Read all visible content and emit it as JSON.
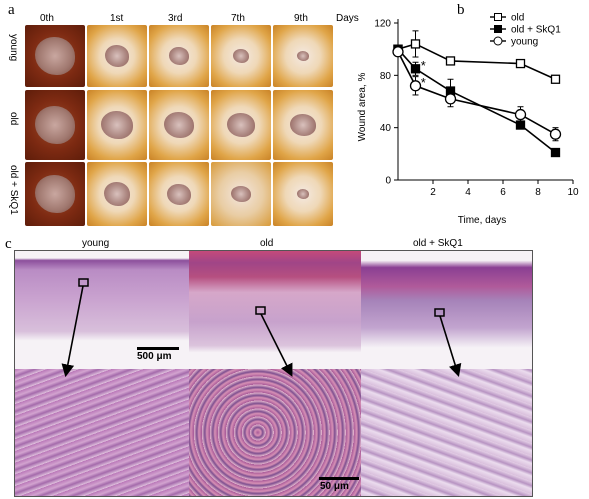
{
  "panel_a": {
    "label": "a",
    "columns": [
      "0th",
      "1st",
      "3rd",
      "7th",
      "9th"
    ],
    "days_label": "Days",
    "rows": [
      "young",
      "old",
      "old + SkQ1"
    ]
  },
  "panel_b": {
    "label": "b",
    "chart_data": {
      "type": "line",
      "xlabel": "Time, days",
      "ylabel": "Wound area, %",
      "xlim": [
        0,
        10
      ],
      "ylim": [
        0,
        120
      ],
      "xticks": [
        2,
        4,
        6,
        8,
        10
      ],
      "yticks": [
        0,
        40,
        80,
        120
      ],
      "legend_position": "top-right",
      "series": [
        {
          "name": "old",
          "marker": "open-square",
          "x": [
            0,
            1,
            3,
            7,
            9
          ],
          "y": [
            100,
            104,
            91,
            89,
            77
          ],
          "err": [
            3,
            10,
            2,
            2,
            2
          ]
        },
        {
          "name": "old + SkQ1",
          "marker": "filled-square",
          "x": [
            0,
            1,
            3,
            7,
            9
          ],
          "y": [
            100,
            85,
            68,
            42,
            21
          ],
          "err": [
            3,
            5,
            9,
            3,
            2
          ]
        },
        {
          "name": "young",
          "marker": "open-circle",
          "x": [
            0,
            1,
            3,
            7,
            9
          ],
          "y": [
            98,
            72,
            62,
            50,
            35
          ],
          "err": [
            3,
            7,
            6,
            6,
            5
          ]
        }
      ],
      "annotations": [
        {
          "text": "*",
          "x": 1.3,
          "y": 88
        },
        {
          "text": "*",
          "x": 1.3,
          "y": 75
        }
      ]
    }
  },
  "panel_c": {
    "label": "c",
    "columns": [
      "young",
      "old",
      "old + SkQ1"
    ],
    "scale_top": "500 μm",
    "scale_bottom": "50 μm"
  }
}
